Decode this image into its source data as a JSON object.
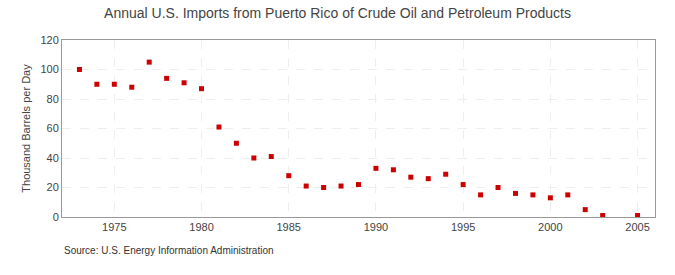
{
  "chart_data": {
    "type": "scatter",
    "title": "Annual U.S. Imports from Puerto Rico of Crude Oil and Petroleum Products",
    "ylabel": "Thousand Barrels per Day",
    "annotations": [
      "Source: U.S. Energy Information Administration"
    ],
    "x": [
      1973,
      1974,
      1975,
      1976,
      1977,
      1978,
      1979,
      1980,
      1981,
      1982,
      1983,
      1984,
      1985,
      1986,
      1987,
      1988,
      1989,
      1990,
      1991,
      1992,
      1993,
      1994,
      1995,
      1996,
      1997,
      1998,
      1999,
      2000,
      2001,
      2002,
      2003,
      2005
    ],
    "values": [
      100,
      90,
      90,
      88,
      105,
      94,
      91,
      87,
      61,
      50,
      40,
      41,
      28,
      21,
      20,
      21,
      22,
      33,
      32,
      27,
      26,
      29,
      22,
      15,
      20,
      16,
      15,
      13,
      15,
      5,
      1,
      1
    ],
    "color": "#cc0000",
    "marker": "square",
    "xlim": [
      1972,
      2006
    ],
    "ylim": [
      0,
      120
    ],
    "xticks": [
      1975,
      1980,
      1985,
      1990,
      1995,
      2000,
      2005
    ],
    "yticks": [
      0,
      20,
      40,
      60,
      80,
      100,
      120
    ],
    "grid": true
  }
}
